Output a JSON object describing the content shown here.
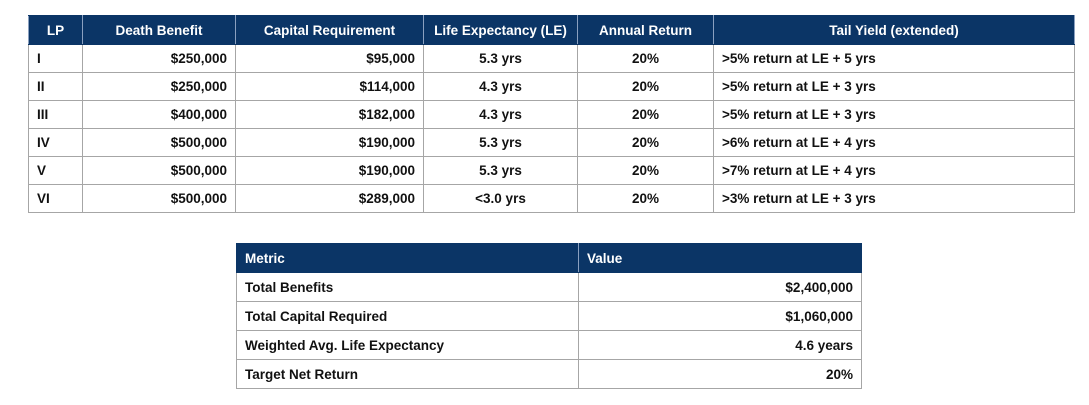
{
  "lp_table": {
    "headers": {
      "lp": "LP",
      "death_benefit": "Death Benefit",
      "capital_requirement": "Capital Requirement",
      "life_expectancy": "Life Expectancy (LE)",
      "annual_return": "Annual Return",
      "tail_yield": "Tail Yield (extended)"
    },
    "rows": [
      {
        "lp": "I",
        "death_benefit": "$250,000",
        "capital_requirement": "$95,000",
        "life_expectancy": "5.3 yrs",
        "annual_return": "20%",
        "tail_yield": ">5% return at LE + 5 yrs"
      },
      {
        "lp": "II",
        "death_benefit": "$250,000",
        "capital_requirement": "$114,000",
        "life_expectancy": "4.3 yrs",
        "annual_return": "20%",
        "tail_yield": ">5% return at LE + 3 yrs"
      },
      {
        "lp": "III",
        "death_benefit": "$400,000",
        "capital_requirement": "$182,000",
        "life_expectancy": "4.3 yrs",
        "annual_return": "20%",
        "tail_yield": ">5% return at LE + 3 yrs"
      },
      {
        "lp": "IV",
        "death_benefit": "$500,000",
        "capital_requirement": "$190,000",
        "life_expectancy": "5.3 yrs",
        "annual_return": "20%",
        "tail_yield": ">6% return at LE + 4 yrs"
      },
      {
        "lp": "V",
        "death_benefit": "$500,000",
        "capital_requirement": "$190,000",
        "life_expectancy": "5.3 yrs",
        "annual_return": "20%",
        "tail_yield": ">7% return at LE + 4 yrs"
      },
      {
        "lp": "VI",
        "death_benefit": "$500,000",
        "capital_requirement": "$289,000",
        "life_expectancy": "<3.0 yrs",
        "annual_return": "20%",
        "tail_yield": ">3% return at LE + 3 yrs"
      }
    ]
  },
  "summary_table": {
    "headers": {
      "metric": "Metric",
      "value": "Value"
    },
    "rows": [
      {
        "metric": "Total Benefits",
        "value": "$2,400,000"
      },
      {
        "metric": "Total Capital Required",
        "value": "$1,060,000"
      },
      {
        "metric": "Weighted Avg. Life Expectancy",
        "value": "4.6 years"
      },
      {
        "metric": "Target Net Return",
        "value": "20%"
      }
    ]
  },
  "colors": {
    "header_background": "#0b3566",
    "header_text": "#ffffff",
    "border": "#a6a6a6"
  }
}
